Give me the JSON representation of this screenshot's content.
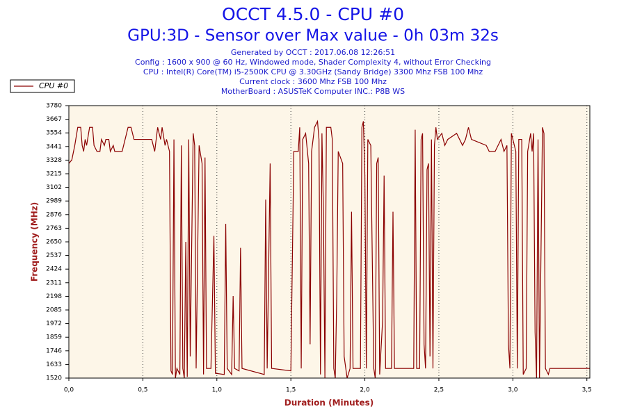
{
  "chart_data": {
    "type": "line",
    "title": "OCCT 4.5.0 - CPU #0",
    "subtitle": "GPU:3D - Sensor over Max value - 0h 03m 32s",
    "annotations": [
      "Generated by OCCT : 2017.06.08 12:26:51",
      "Config : 1600 x 900 @ 60 Hz, Windowed mode, Shader Complexity 4, without Error Checking",
      "CPU : Intel(R) Core(TM) i5-2500K CPU @ 3.30GHz (Sandy Bridge) 3300 Mhz FSB 100 Mhz",
      "Current clock : 3600 Mhz FSB 100 Mhz",
      "MotherBoard : ASUSTeK Computer INC.: P8B WS"
    ],
    "x_label": "Duration (Minutes)",
    "y_label": "Frequency (MHz)",
    "x": [
      0.0,
      0.02,
      0.04,
      0.06,
      0.08,
      0.09,
      0.1,
      0.11,
      0.12,
      0.14,
      0.16,
      0.17,
      0.19,
      0.21,
      0.22,
      0.24,
      0.25,
      0.27,
      0.28,
      0.3,
      0.31,
      0.36,
      0.38,
      0.4,
      0.42,
      0.44,
      0.56,
      0.58,
      0.6,
      0.62,
      0.63,
      0.65,
      0.66,
      0.68,
      0.69,
      0.7,
      0.71,
      0.72,
      0.73,
      0.75,
      0.76,
      0.77,
      0.78,
      0.79,
      0.8,
      0.81,
      0.82,
      0.84,
      0.85,
      0.86,
      0.88,
      0.9,
      0.91,
      0.92,
      0.93,
      0.96,
      0.98,
      0.99,
      1.05,
      1.06,
      1.07,
      1.1,
      1.11,
      1.12,
      1.15,
      1.16,
      1.17,
      1.32,
      1.33,
      1.34,
      1.36,
      1.37,
      1.5,
      1.52,
      1.55,
      1.56,
      1.57,
      1.58,
      1.6,
      1.62,
      1.63,
      1.64,
      1.66,
      1.68,
      1.69,
      1.7,
      1.71,
      1.72,
      1.73,
      1.74,
      1.77,
      1.78,
      1.79,
      1.8,
      1.81,
      1.82,
      1.85,
      1.86,
      1.88,
      1.9,
      1.91,
      1.92,
      1.97,
      1.98,
      1.99,
      2.0,
      2.01,
      2.02,
      2.04,
      2.06,
      2.07,
      2.08,
      2.09,
      2.1,
      2.12,
      2.13,
      2.14,
      2.18,
      2.19,
      2.2,
      2.33,
      2.34,
      2.35,
      2.37,
      2.38,
      2.39,
      2.4,
      2.41,
      2.42,
      2.43,
      2.44,
      2.45,
      2.46,
      2.47,
      2.48,
      2.49,
      2.52,
      2.54,
      2.56,
      2.62,
      2.64,
      2.66,
      2.68,
      2.7,
      2.72,
      2.82,
      2.84,
      2.88,
      2.9,
      2.92,
      2.94,
      2.96,
      2.97,
      2.98,
      2.99,
      3.02,
      3.03,
      3.04,
      3.06,
      3.07,
      3.09,
      3.1,
      3.12,
      3.13,
      3.14,
      3.15,
      3.16,
      3.17,
      3.18,
      3.2,
      3.21,
      3.22,
      3.24,
      3.25,
      3.52
    ],
    "series": [
      {
        "name": "CPU #0",
        "color": "#8b0000",
        "values": [
          3300,
          3330,
          3450,
          3600,
          3600,
          3450,
          3400,
          3500,
          3450,
          3600,
          3600,
          3450,
          3400,
          3400,
          3500,
          3450,
          3500,
          3500,
          3400,
          3450,
          3400,
          3400,
          3500,
          3600,
          3600,
          3500,
          3500,
          3400,
          3600,
          3500,
          3600,
          3450,
          3500,
          3400,
          1580,
          1550,
          3500,
          1520,
          1600,
          1550,
          3450,
          1600,
          1520,
          2650,
          1530,
          3500,
          1700,
          3550,
          3450,
          1600,
          3450,
          3300,
          1550,
          3350,
          1600,
          1600,
          2700,
          1560,
          1550,
          2800,
          1600,
          1550,
          2200,
          1600,
          1580,
          2600,
          1600,
          1550,
          3000,
          1600,
          3300,
          1600,
          1580,
          3400,
          3400,
          3600,
          1600,
          3500,
          3550,
          3300,
          1800,
          3400,
          3600,
          3650,
          3500,
          1550,
          3550,
          2900,
          1520,
          3600,
          3600,
          3500,
          1600,
          1520,
          2200,
          3400,
          3300,
          1700,
          1520,
          1600,
          2900,
          1600,
          1600,
          3600,
          3650,
          3200,
          1600,
          3500,
          3450,
          1600,
          1520,
          3300,
          3350,
          1550,
          2000,
          3200,
          1600,
          1600,
          2900,
          1600,
          1600,
          3580,
          1600,
          1600,
          3500,
          3550,
          1800,
          1600,
          3250,
          3300,
          1700,
          3500,
          1600,
          3450,
          3600,
          3500,
          3550,
          3450,
          3500,
          3550,
          3500,
          3450,
          3500,
          3600,
          3500,
          3450,
          3400,
          3400,
          3450,
          3500,
          3400,
          3450,
          1800,
          1600,
          3550,
          3400,
          1600,
          3500,
          3500,
          1550,
          1600,
          3400,
          3550,
          3400,
          3550,
          1900,
          1520,
          3500,
          1520,
          3600,
          3550,
          1600,
          1550,
          1600,
          1600
        ]
      }
    ],
    "xlim": [
      0,
      3.52
    ],
    "xticks": [
      {
        "value": 0,
        "label": "0,0"
      },
      {
        "value": 0.5,
        "label": "0,5"
      },
      {
        "value": 1,
        "label": "1,0"
      },
      {
        "value": 1.5,
        "label": "1,5"
      },
      {
        "value": 2,
        "label": "2,0"
      },
      {
        "value": 2.5,
        "label": "2,5"
      },
      {
        "value": 3,
        "label": "3,0"
      },
      {
        "value": 3.5,
        "label": "3,5"
      }
    ],
    "ylim": [
      1520,
      3780
    ],
    "yticks": [
      1520,
      1633,
      1746,
      1859,
      1972,
      2085,
      2198,
      2311,
      2424,
      2537,
      2650,
      2763,
      2876,
      2989,
      3102,
      3215,
      3328,
      3441,
      3554,
      3667,
      3780
    ],
    "grid": true,
    "legend": "top-left"
  }
}
